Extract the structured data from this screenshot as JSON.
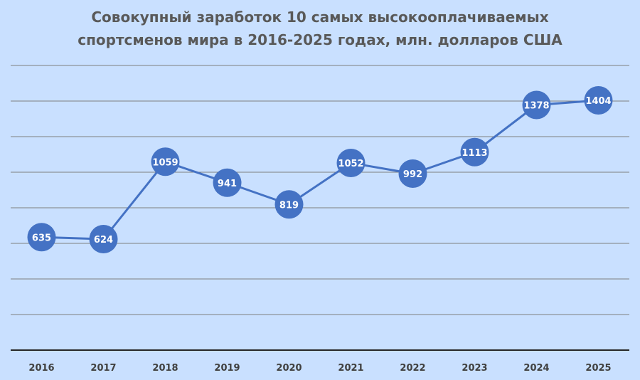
{
  "chart_data": {
    "type": "line",
    "title_lines": [
      "Совокупный заработок 10 самых высокооплачиваемых",
      "спортсменов мира в 2016-2025 годах, млн. долларов США"
    ],
    "categories": [
      "2016",
      "2017",
      "2018",
      "2019",
      "2020",
      "2021",
      "2022",
      "2023",
      "2024",
      "2025"
    ],
    "series": [
      {
        "values": [
          635,
          624,
          1059,
          941,
          819,
          1052,
          992,
          1113,
          1378,
          1404
        ]
      }
    ],
    "data_labels": [
      "635",
      "624",
      "1059",
      "941",
      "819",
      "1052",
      "992",
      "1113",
      "1378",
      "1404"
    ],
    "xlabel": "",
    "ylabel": "",
    "ylim": [
      0,
      1600
    ],
    "grid": true,
    "legend": "none",
    "colors": {
      "line": "#4472c4",
      "marker": "#4472c4",
      "background": "#c9e0ff",
      "grid": "#7f7f7f"
    }
  }
}
